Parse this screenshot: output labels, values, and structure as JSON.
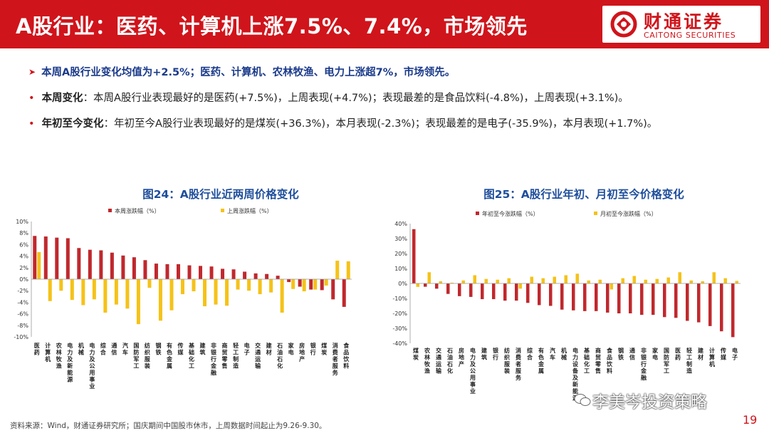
{
  "header": {
    "title": "A股行业：医药、计算机上涨7.5%、7.4%，市场领先",
    "logo_cn": "财通证券",
    "logo_en": "CAITONG SECURITIES"
  },
  "bullets": {
    "headline": "本周A股行业变化均值为+2.5%；医药、计算机、农林牧渔、电力上涨超7%，市场领先。",
    "weekly_label": "本周变化",
    "weekly_text": "：本周A股行业表现最好的是医药(+7.5%)，上周表现(+4.7%)；表现最差的是食品饮料(-4.8%)，上周表现(+3.1%)。",
    "ytd_label": "年初至今变化",
    "ytd_text": "：年初至今A股行业表现最好的是煤炭(+36.3%)，本月表现(-2.3%)；表现最差的是电子(-35.9%)，本月表现(+1.7%)。"
  },
  "colors": {
    "red": "#c0282d",
    "yellow": "#f5c218",
    "brand": "#d0141b"
  },
  "chart_data": [
    {
      "type": "bar",
      "title": "图24：A股行业近两周价格变化",
      "ylim": [
        -10,
        10
      ],
      "yticks": [
        "10%",
        "8%",
        "6%",
        "4%",
        "2%",
        "0%",
        "-2%",
        "-4%",
        "-6%",
        "-8%",
        "-10%"
      ],
      "categories": [
        "医药",
        "计算机",
        "农林牧渔",
        "电力及新能源",
        "机械",
        "电力及公用事业",
        "综合",
        "通信",
        "汽车",
        "国防军工",
        "纺织服装",
        "钢铁",
        "有色金属",
        "传媒",
        "基础化工",
        "建筑",
        "非银行金融",
        "商贸零售",
        "轻工制造",
        "电子",
        "交通运输",
        "建材",
        "石油石化",
        "家电",
        "房地产",
        "银行",
        "煤炭",
        "消费者服务",
        "食品饮料"
      ],
      "series": [
        {
          "name": "本周涨跌幅（%）",
          "values": [
            7.5,
            7.4,
            7.2,
            7.1,
            5.4,
            5.1,
            5.0,
            4.6,
            4.1,
            3.8,
            3.3,
            2.7,
            2.6,
            2.6,
            2.4,
            2.3,
            2.2,
            1.8,
            1.7,
            1.3,
            1.0,
            0.9,
            0.6,
            -0.5,
            -1.3,
            -1.8,
            -1.9,
            -3.5,
            -4.8
          ]
        },
        {
          "name": "上周涨跌幅（%）",
          "values": [
            4.7,
            -3.8,
            -2.0,
            -3.6,
            -4.5,
            -3.5,
            -5.8,
            -4.4,
            -5.1,
            -7.8,
            -1.5,
            -7.2,
            -5.4,
            -2.6,
            -2.1,
            -4.7,
            -4.4,
            -4.6,
            -1.8,
            -2.0,
            -2.6,
            -2.3,
            -5.8,
            -1.7,
            -2.1,
            -1.8,
            -1.1,
            3.2,
            3.1
          ]
        }
      ]
    },
    {
      "type": "bar",
      "title": "图25：A股行业年初、月初至今价格变化",
      "ylim": [
        -40,
        40
      ],
      "yticks": [
        "40%",
        "30%",
        "20%",
        "10%",
        "0%",
        "-10%",
        "-20%",
        "-30%",
        "-40%"
      ],
      "categories": [
        "煤炭",
        "农林牧渔",
        "交通运输",
        "石油石化",
        "房地产",
        "电力及公用事业",
        "建筑",
        "银行",
        "纺织服装",
        "消费者服务",
        "综合",
        "有色金属",
        "汽车",
        "机械",
        "电力设备及新能源",
        "基础化工",
        "商贸零售",
        "食品饮料",
        "钢铁",
        "通信",
        "非银行金融",
        "家电",
        "国防军工",
        "医药",
        "轻工制造",
        "建材",
        "计算机",
        "传媒",
        "电子"
      ],
      "series": [
        {
          "name": "年初至今涨跌幅（%）",
          "values": [
            36.3,
            -2.2,
            -3.5,
            -7.0,
            -8.5,
            -9.0,
            -10.5,
            -10.5,
            -11.5,
            -11.5,
            -13.0,
            -14.5,
            -15.0,
            -17.5,
            -18.0,
            -18.5,
            -18.5,
            -19.5,
            -20.0,
            -20.0,
            -21.0,
            -21.0,
            -22.5,
            -23.0,
            -25.0,
            -26.0,
            -28.5,
            -32.0,
            -35.9
          ]
        },
        {
          "name": "月初至今涨跌幅（%）",
          "values": [
            -2.3,
            7.5,
            1.5,
            0.5,
            2.0,
            5.5,
            3.0,
            2.5,
            3.5,
            -3.5,
            4.5,
            3.5,
            4.5,
            5.5,
            6.5,
            2.0,
            2.5,
            -4.0,
            3.5,
            5.0,
            2.5,
            3.0,
            4.0,
            7.5,
            2.0,
            1.5,
            7.5,
            3.5,
            1.7
          ]
        }
      ]
    }
  ],
  "footer": "资料来源：Wind，财通证券研究所；国庆期间中国股市休市，上周数据时间起止为9.26-9.30。",
  "watermark": "李美岑投资策略",
  "page_number": "19"
}
